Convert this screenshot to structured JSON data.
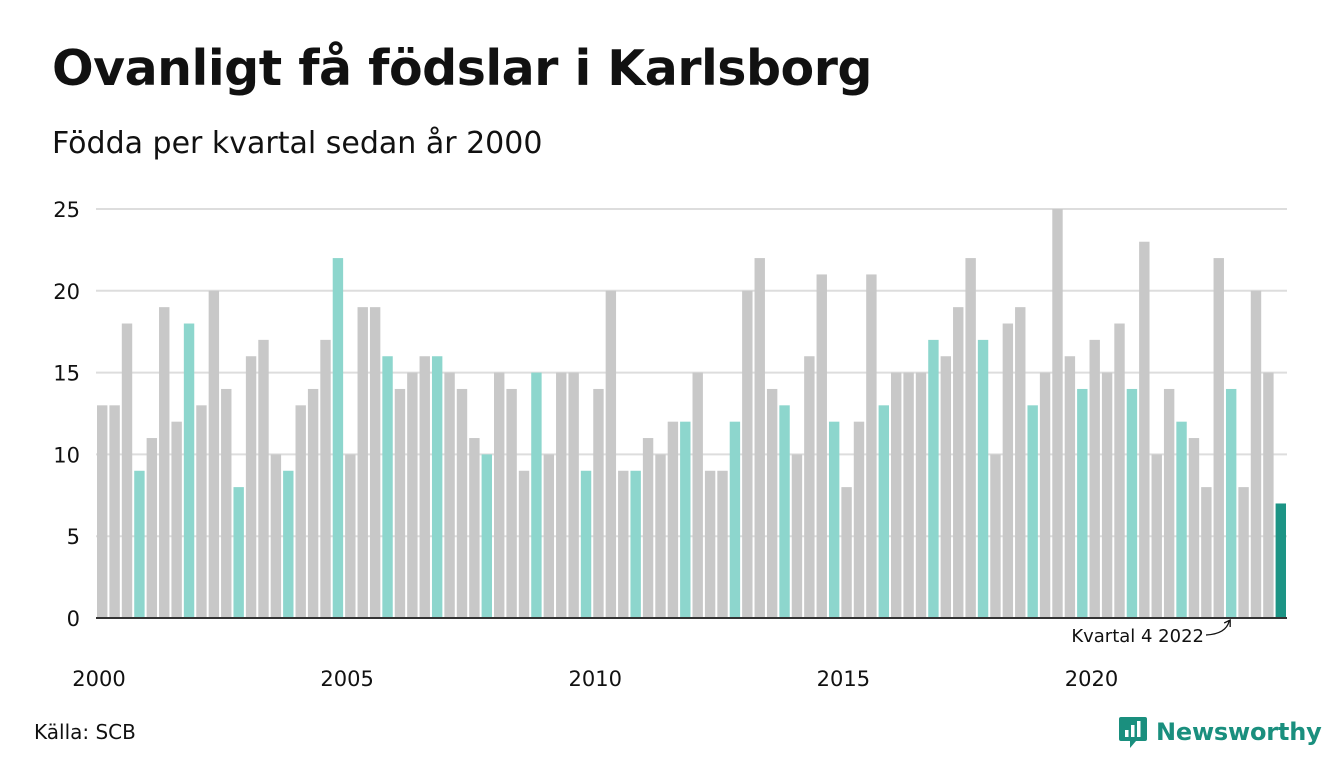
{
  "header": {
    "title": "Ovanligt få födslar i Karlsborg",
    "subtitle": "Födda per kvartal sedan år 2000"
  },
  "footer": {
    "source": "Källa: SCB",
    "brand": "Newsworthy"
  },
  "colors": {
    "grey": "#c8c8c8",
    "quarter4": "#8dd6cd",
    "latest": "#1c9485",
    "grid": "#dddddd",
    "brand": "#1a8f7e"
  },
  "chart_data": {
    "type": "bar",
    "title": "Ovanligt få födslar i Karlsborg",
    "subtitle": "Födda per kvartal sedan år 2000",
    "ylim": [
      0,
      25
    ],
    "yticks": [
      0,
      5,
      10,
      15,
      20,
      25
    ],
    "xticks": [
      "2000",
      "2005",
      "2010",
      "2015",
      "2020"
    ],
    "grid": true,
    "annotation": "Kvartal 4 2022",
    "start_year": 2000,
    "values": [
      13,
      13,
      18,
      9,
      11,
      19,
      12,
      18,
      13,
      20,
      14,
      8,
      16,
      17,
      10,
      9,
      13,
      14,
      17,
      22,
      10,
      19,
      19,
      16,
      14,
      15,
      16,
      16,
      15,
      14,
      11,
      10,
      15,
      14,
      9,
      15,
      10,
      15,
      15,
      9,
      14,
      20,
      9,
      9,
      11,
      10,
      12,
      12,
      15,
      9,
      9,
      12,
      20,
      22,
      14,
      13,
      10,
      16,
      21,
      12,
      8,
      12,
      21,
      13,
      15,
      15,
      15,
      17,
      16,
      19,
      22,
      17,
      10,
      18,
      19,
      13,
      15,
      25,
      16,
      14,
      17,
      15,
      18,
      14,
      23,
      10,
      14,
      12,
      11,
      8,
      22,
      14,
      8,
      20,
      15,
      7
    ]
  }
}
